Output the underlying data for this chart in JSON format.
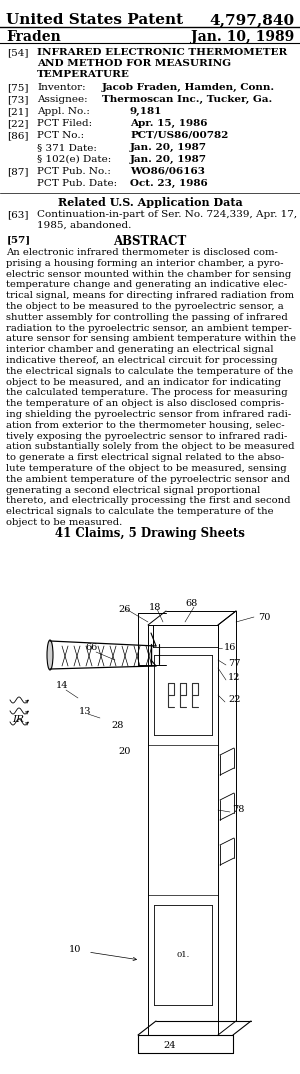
{
  "bg_color": "#ffffff",
  "title_left": "United States Patent",
  "title_right": "4,797,840",
  "subtitle_left": "Fraden",
  "subtitle_right": "Jan. 10, 1989",
  "f54_num": "[54]",
  "f54_lines": [
    "INFRARED ELECTRONIC THERMOMETER",
    "AND METHOD FOR MEASURING",
    "TEMPERATURE"
  ],
  "f75_num": "[75]",
  "f75_label": "Inventor:",
  "f75_value": "Jacob Fraden, Hamden, Conn.",
  "f73_num": "[73]",
  "f73_label": "Assignee:",
  "f73_value": "Thermoscan Inc., Tucker, Ga.",
  "f21_num": "[21]",
  "f21_label": "Appl. No.:",
  "f21_value": "9,181",
  "f22_num": "[22]",
  "f22_label": "PCT Filed:",
  "f22_value": "Apr. 15, 1986",
  "f86_num": "[86]",
  "f86_label": "PCT No.:",
  "f86_value": "PCT/US86/00782",
  "f86b_label": "§ 371 Date:",
  "f86b_value": "Jan. 20, 1987",
  "f86c_label": "§ 102(e) Date:",
  "f86c_value": "Jan. 20, 1987",
  "f87_num": "[87]",
  "f87_label": "PCT Pub. No.:",
  "f87_value": "WO86/06163",
  "f87b_label": "PCT Pub. Date:",
  "f87b_value": "Oct. 23, 1986",
  "related_header": "Related U.S. Application Data",
  "f63_num": "[63]",
  "f63_lines": [
    "Continuation-in-part of Ser. No. 724,339, Apr. 17,",
    "1985, abandoned."
  ],
  "f57_num": "[57]",
  "abstract_header": "ABSTRACT",
  "abstract_lines": [
    "An electronic infrared thermometer is disclosed com-",
    "prising a housing forming an interior chamber, a pyro-",
    "electric sensor mounted within the chamber for sensing",
    "temperature change and generating an indicative elec-",
    "trical signal, means for directing infrared radiation from",
    "the object to be measured to the pyroelectric sensor, a",
    "shutter assembly for controlling the passing of infrared",
    "radiation to the pyroelectric sensor, an ambient temper-",
    "ature sensor for sensing ambient temperature within the",
    "interior chamber and generating an electrical signal",
    "indicative thereof, an electrical circuit for processing",
    "the electrical signals to calculate the temperature of the",
    "object to be measured, and an indicator for indicating",
    "the calculated temperature. The process for measuring",
    "the temperature of an object is also disclosed compris-",
    "ing shielding the pyroelectric sensor from infrared radi-",
    "ation from exterior to the thermometer housing, selec-",
    "tively exposing the pyroelectric sensor to infrared radi-",
    "ation substantially solely from the object to be measured",
    "to generate a first electrical signal related to the abso-",
    "lute temperature of the object to be measured, sensing",
    "the ambient temperature of the pyroelectric sensor and",
    "generating a second electrical signal proportional",
    "thereto, and electrically processing the first and second",
    "electrical signals to calculate the temperature of the",
    "object to be measured."
  ],
  "caption": "41 Claims, 5 Drawing Sheets"
}
